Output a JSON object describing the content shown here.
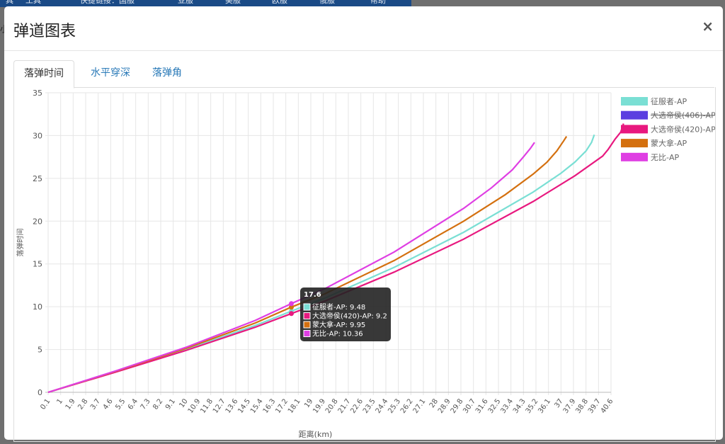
{
  "background": {
    "nav": [
      "具",
      "工具",
      "快捷链接：国服",
      "亚服",
      "美服",
      "欧服",
      "俄服",
      "帮助"
    ]
  },
  "modal": {
    "title": "弹道图表",
    "close_label": "×",
    "tabs": [
      {
        "label": "落弹时间",
        "active": true
      },
      {
        "label": "水平穿深",
        "active": false
      },
      {
        "label": "落弹角",
        "active": false
      }
    ]
  },
  "chart_data": {
    "type": "line",
    "xlabel": "距离(km)",
    "ylabel": "落弹时间",
    "ylim": [
      0,
      35
    ],
    "yticks": [
      0,
      5,
      10,
      15,
      20,
      25,
      30,
      35
    ],
    "x_ticks": [
      "0.1",
      "1",
      "1.9",
      "2.8",
      "3.7",
      "4.6",
      "5.5",
      "6.4",
      "7.3",
      "8.2",
      "9.1",
      "10",
      "10.9",
      "11.8",
      "12.7",
      "13.6",
      "14.5",
      "15.4",
      "16.3",
      "17.2",
      "18.1",
      "19",
      "19.9",
      "20.8",
      "21.7",
      "22.6",
      "23.5",
      "24.4",
      "25.3",
      "26.2",
      "27.1",
      "28",
      "28.9",
      "29.8",
      "30.7",
      "31.6",
      "32.5",
      "33.4",
      "34.3",
      "35.2",
      "36.1",
      "37",
      "37.9",
      "38.8",
      "39.7",
      "40.6"
    ],
    "xlim": [
      0.1,
      40.6
    ],
    "grid": true,
    "legend_position": "right",
    "series": [
      {
        "name": "征服者-AP",
        "color": "#7adfd4",
        "hidden": false,
        "points": [
          [
            0.1,
            0
          ],
          [
            5,
            2.42
          ],
          [
            10,
            5.0
          ],
          [
            15,
            7.8
          ],
          [
            17.6,
            9.48
          ],
          [
            20,
            11.0
          ],
          [
            25,
            14.6
          ],
          [
            30,
            18.7
          ],
          [
            35,
            23.4
          ],
          [
            37,
            25.6
          ],
          [
            38,
            26.9
          ],
          [
            38.8,
            28.2
          ],
          [
            39.2,
            29.2
          ],
          [
            39.4,
            30.1
          ]
        ]
      },
      {
        "name": "大选帝侯(406)-AP",
        "color": "#5b3fe0",
        "hidden": true,
        "points": []
      },
      {
        "name": "大选帝侯(420)-AP",
        "color": "#e8197f",
        "hidden": false,
        "points": [
          [
            0.1,
            0
          ],
          [
            5,
            2.38
          ],
          [
            10,
            4.88
          ],
          [
            15,
            7.6
          ],
          [
            17.6,
            9.2
          ],
          [
            20,
            10.65
          ],
          [
            25,
            14.05
          ],
          [
            30,
            17.9
          ],
          [
            35,
            22.3
          ],
          [
            38,
            25.3
          ],
          [
            40,
            27.6
          ],
          [
            40.4,
            28.4
          ],
          [
            40.9,
            29.6
          ],
          [
            41.3,
            30.4
          ],
          [
            41.5,
            31.4
          ]
        ]
      },
      {
        "name": "蒙大拿-AP",
        "color": "#d4700f",
        "hidden": false,
        "points": [
          [
            0.1,
            0
          ],
          [
            5,
            2.48
          ],
          [
            10,
            5.12
          ],
          [
            15,
            8.1
          ],
          [
            17.6,
            9.95
          ],
          [
            20,
            11.5
          ],
          [
            25,
            15.4
          ],
          [
            30,
            20.0
          ],
          [
            33,
            23.1
          ],
          [
            35,
            25.5
          ],
          [
            36,
            26.9
          ],
          [
            36.7,
            28.2
          ],
          [
            37.2,
            29.4
          ],
          [
            37.4,
            29.9
          ]
        ]
      },
      {
        "name": "无比-AP",
        "color": "#df3ee3",
        "hidden": false,
        "points": [
          [
            0.1,
            0
          ],
          [
            5,
            2.52
          ],
          [
            10,
            5.25
          ],
          [
            15,
            8.4
          ],
          [
            17.6,
            10.36
          ],
          [
            20,
            12.1
          ],
          [
            25,
            16.4
          ],
          [
            30,
            21.5
          ],
          [
            32,
            23.9
          ],
          [
            33.5,
            26.0
          ],
          [
            34.3,
            27.5
          ],
          [
            34.8,
            28.5
          ],
          [
            35.1,
            29.2
          ]
        ]
      }
    ],
    "tooltip": {
      "title": "17.6",
      "rows": [
        {
          "label": "征服者-AP: 9.48",
          "color": "#7adfd4"
        },
        {
          "label": "大选帝侯(420)-AP: 9.2",
          "color": "#e8197f"
        },
        {
          "label": "蒙大拿-AP: 9.95",
          "color": "#d4700f"
        },
        {
          "label": "无比-AP: 10.36",
          "color": "#df3ee3"
        }
      ]
    }
  }
}
